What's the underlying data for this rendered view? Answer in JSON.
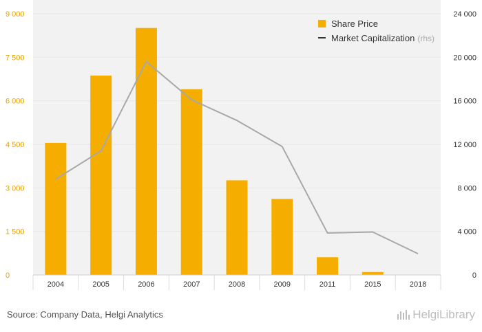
{
  "chart_data": {
    "type": "bar",
    "categories": [
      "2004",
      "2005",
      "2006",
      "2007",
      "2008",
      "2009",
      "2011",
      "2015",
      "2018"
    ],
    "series": [
      {
        "name": "Share Price",
        "type": "bar",
        "axis": "left",
        "values": [
          4550,
          6870,
          8510,
          6400,
          3260,
          2620,
          610,
          100,
          0
        ]
      },
      {
        "name": "Market Capitalization",
        "name_suffix": "(rhs)",
        "type": "line",
        "axis": "right",
        "values": [
          8800,
          11400,
          19600,
          16100,
          14200,
          11800,
          3850,
          3950,
          1950
        ]
      }
    ],
    "y_left": {
      "lim": [
        0,
        9000
      ],
      "ticks": [
        0,
        1500,
        3000,
        4500,
        6000,
        7500,
        9000
      ],
      "tick_labels": [
        "0",
        "1 500",
        "3 000",
        "4 500",
        "6 000",
        "7 500",
        "9 000"
      ]
    },
    "y_right": {
      "lim": [
        0,
        24000
      ],
      "ticks": [
        0,
        4000,
        8000,
        12000,
        16000,
        20000,
        24000
      ],
      "tick_labels": [
        "0",
        "4 000",
        "8 000",
        "12 000",
        "16 000",
        "20 000",
        "24 000"
      ]
    },
    "grid": true,
    "legend_position": "top-right",
    "colors": {
      "bar": "#F5AE00",
      "line": "#A8A8A8",
      "left_axis_text": "#E8A200",
      "right_axis_text": "#333333",
      "grid": "#E6E6E6",
      "panel": "#F2F2F2"
    }
  },
  "footer": {
    "source": "Source: Company Data, Helgi Analytics",
    "brand": "HelgiLibrary",
    "brand_icon": "bar-chart-logo-icon"
  }
}
